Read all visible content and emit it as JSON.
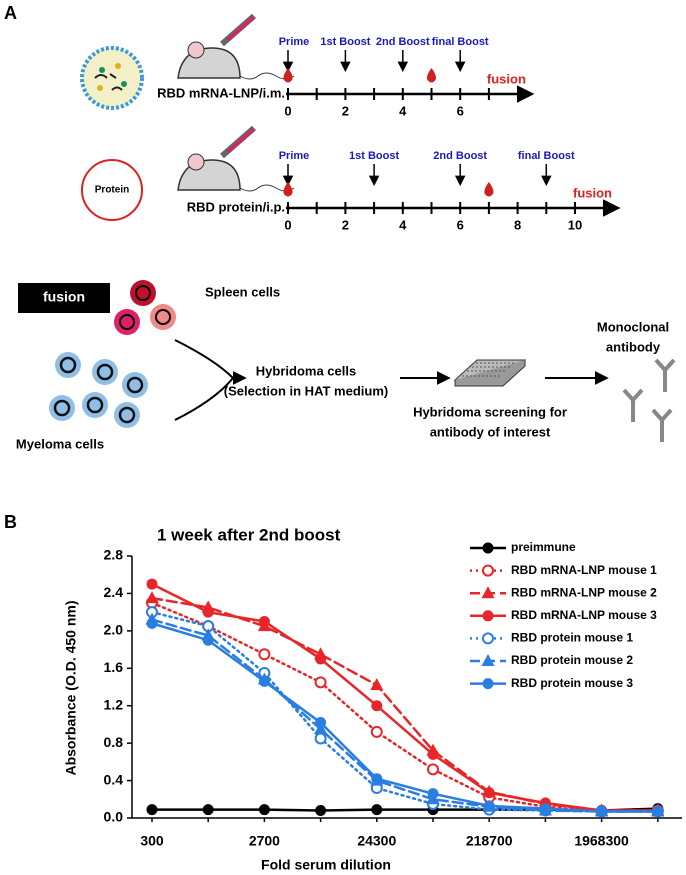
{
  "panel_a": {
    "label": "A",
    "timelines": [
      {
        "route": "RBD mRNA-LNP/i.m.",
        "ticks": [
          0,
          2,
          4,
          6
        ],
        "minor_ticks": [
          1,
          3,
          5,
          7
        ],
        "events": [
          {
            "label": "Prime",
            "week": 0
          },
          {
            "label": "1st Boost",
            "week": 2
          },
          {
            "label": "2nd Boost",
            "week": 4
          },
          {
            "label": "final Boost",
            "week": 6
          }
        ],
        "bleeds": [
          0,
          5
        ],
        "fusion": {
          "label": "fusion",
          "week": 7
        }
      },
      {
        "route": "RBD protein/i.p.",
        "antigen": "Protein",
        "ticks": [
          0,
          2,
          4,
          6,
          8,
          10
        ],
        "minor_ticks": [
          1,
          3,
          5,
          7,
          9
        ],
        "events": [
          {
            "label": "Prime",
            "week": 0
          },
          {
            "label": "1st Boost",
            "week": 3
          },
          {
            "label": "2nd Boost",
            "week": 6
          },
          {
            "label": "final Boost",
            "week": 9
          }
        ],
        "bleeds": [
          0,
          7
        ],
        "fusion": {
          "label": "fusion",
          "week": 10
        }
      }
    ],
    "workflow": {
      "fusion": "fusion",
      "spleen": "Spleen cells",
      "myeloma": "Myeloma cells",
      "hybridoma": [
        "Hybridoma cells",
        "(Selection in HAT medium)"
      ],
      "screening": [
        "Hybridoma screening for",
        "antibody of interest"
      ],
      "product": [
        "Monoclonal",
        "antibody"
      ]
    }
  },
  "chart_data": {
    "type": "line",
    "panel_label": "B",
    "title": "1 week after 2nd boost",
    "x_label": "Fold serum dilution",
    "y_label": "Absorbance (O.D. 450 nm)",
    "categories": [
      300,
      null,
      2700,
      null,
      24300,
      null,
      218700,
      null,
      1968300,
      null
    ],
    "ylim": [
      0,
      2.8
    ],
    "yticks": [
      {
        "value": 0,
        "label": "0.0"
      },
      0.4,
      0.8,
      1.2,
      1.6,
      {
        "value": 2,
        "label": "2.0"
      },
      2.4,
      2.8
    ],
    "grid": false,
    "legend": "upper right",
    "series": [
      {
        "name": "preimmune",
        "color": "#000000",
        "dash": "solid",
        "marker": "circle",
        "values": [
          0.09,
          0.09,
          0.09,
          0.08,
          0.09,
          0.09,
          0.09,
          0.09,
          0.08,
          0.1
        ]
      },
      {
        "name": "RBD mRNA-LNP mouse 1",
        "color": "#e8262a",
        "dash": "dotted",
        "marker": "open-circle",
        "values": [
          2.3,
          2.05,
          1.75,
          1.45,
          0.92,
          0.52,
          0.22,
          0.12,
          0.07,
          0.08
        ]
      },
      {
        "name": "RBD mRNA-LNP mouse 2",
        "color": "#e8262a",
        "dash": "dashed",
        "marker": "triangle",
        "values": [
          2.35,
          2.25,
          2.05,
          1.75,
          1.42,
          0.72,
          0.28,
          0.15,
          0.08,
          0.08
        ]
      },
      {
        "name": "RBD mRNA-LNP mouse 3",
        "color": "#e8262a",
        "dash": "solid",
        "marker": "circle",
        "values": [
          2.5,
          2.2,
          2.1,
          1.7,
          1.2,
          0.68,
          0.27,
          0.16,
          0.08,
          0.08
        ]
      },
      {
        "name": "RBD protein mouse 1",
        "color": "#2a7de1",
        "dash": "dotted",
        "marker": "open-circle",
        "values": [
          2.2,
          2.05,
          1.55,
          0.85,
          0.32,
          0.15,
          0.09,
          0.08,
          0.07,
          0.07
        ]
      },
      {
        "name": "RBD protein mouse 2",
        "color": "#2a7de1",
        "dash": "dashed",
        "marker": "triangle",
        "values": [
          2.12,
          1.95,
          1.48,
          0.95,
          0.4,
          0.2,
          0.12,
          0.08,
          0.07,
          0.07
        ]
      },
      {
        "name": "RBD protein mouse 3",
        "color": "#2a7de1",
        "dash": "solid",
        "marker": "circle",
        "values": [
          2.08,
          1.9,
          1.46,
          1.02,
          0.42,
          0.26,
          0.13,
          0.1,
          0.07,
          0.07
        ]
      }
    ]
  }
}
